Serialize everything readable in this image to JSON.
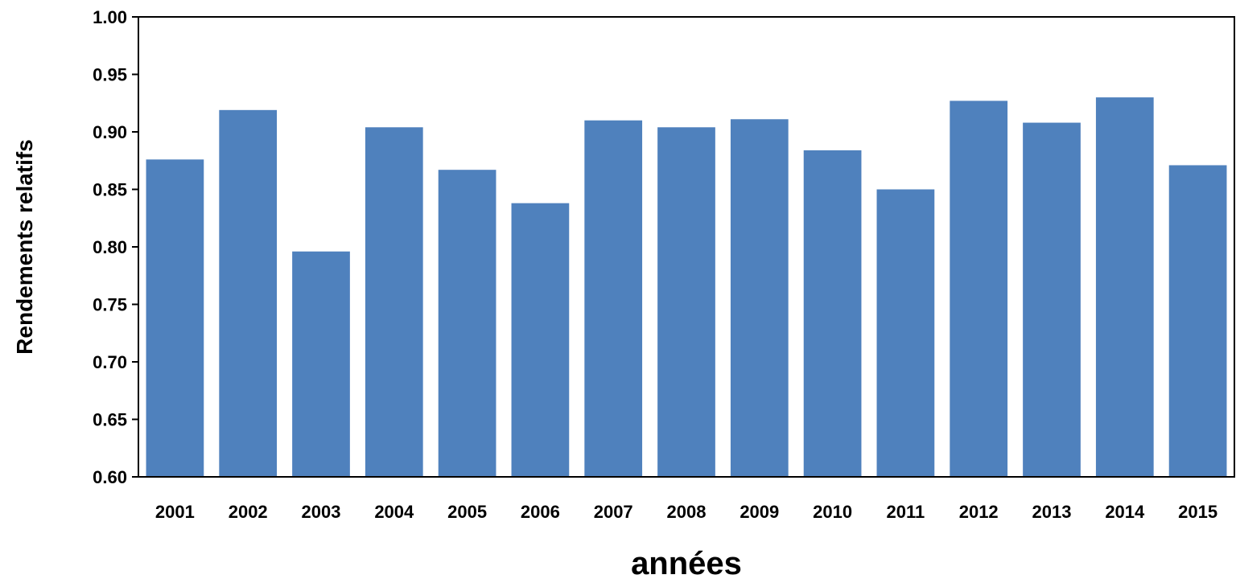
{
  "chart_data": {
    "type": "bar",
    "title": "",
    "xlabel": "années",
    "ylabel": "Rendements relatifs",
    "categories": [
      "2001",
      "2002",
      "2003",
      "2004",
      "2005",
      "2006",
      "2007",
      "2008",
      "2009",
      "2010",
      "2011",
      "2012",
      "2013",
      "2014",
      "2015"
    ],
    "values": [
      0.876,
      0.919,
      0.796,
      0.904,
      0.867,
      0.838,
      0.91,
      0.904,
      0.911,
      0.884,
      0.85,
      0.927,
      0.908,
      0.93,
      0.871
    ],
    "ylim": [
      0.6,
      1.0
    ],
    "yticks": [
      "0.60",
      "0.65",
      "0.70",
      "0.75",
      "0.80",
      "0.85",
      "0.90",
      "0.95",
      "1.00"
    ],
    "grid": false,
    "legend": "none",
    "colors": {
      "bar": "#4f81bd",
      "axis": "#000000",
      "text": "#000000"
    }
  }
}
